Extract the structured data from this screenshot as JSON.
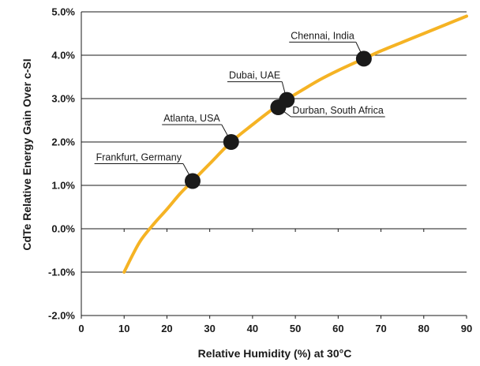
{
  "chart_data": {
    "type": "line",
    "title": "",
    "xlabel": "Relative Humidity (%) at 30°C",
    "ylabel": "CdTe Relative Energy Gain Over c-SI",
    "xlim": [
      0,
      90
    ],
    "ylim": [
      -2.0,
      5.0
    ],
    "x_ticks": [
      "0",
      "10",
      "20",
      "30",
      "40",
      "50",
      "60",
      "70",
      "80",
      "90"
    ],
    "y_ticks": [
      "5.0%",
      "4.0%",
      "3.0%",
      "2.0%",
      "1.0%",
      "0.0%",
      "-1.0%",
      "-2.0%"
    ],
    "grid": "horizontal",
    "colors": {
      "curve": "#f5b324",
      "points": "#1a1a1a",
      "grid": "#1a1a1a"
    },
    "series": [
      {
        "values_x": [
          10,
          12,
          14,
          17,
          20,
          23,
          26,
          30,
          35,
          40,
          45,
          48,
          52,
          56,
          60,
          66,
          70,
          75,
          80,
          85,
          90
        ],
        "values_y": [
          -1.0,
          -0.6,
          -0.25,
          0.12,
          0.45,
          0.8,
          1.1,
          1.5,
          2.0,
          2.4,
          2.78,
          2.98,
          3.22,
          3.45,
          3.65,
          3.92,
          4.1,
          4.3,
          4.5,
          4.7,
          4.9
        ]
      }
    ],
    "points": [
      {
        "label": "Frankfurt, Germany",
        "x": 26,
        "y": 1.1
      },
      {
        "label": "Atlanta, USA",
        "x": 35,
        "y": 2.0
      },
      {
        "label": "Dubai, UAE",
        "x": 48,
        "y": 2.97
      },
      {
        "label": "Durban, South Africa",
        "x": 46,
        "y": 2.8
      },
      {
        "label": "Chennai, India",
        "x": 66,
        "y": 3.92
      }
    ]
  }
}
